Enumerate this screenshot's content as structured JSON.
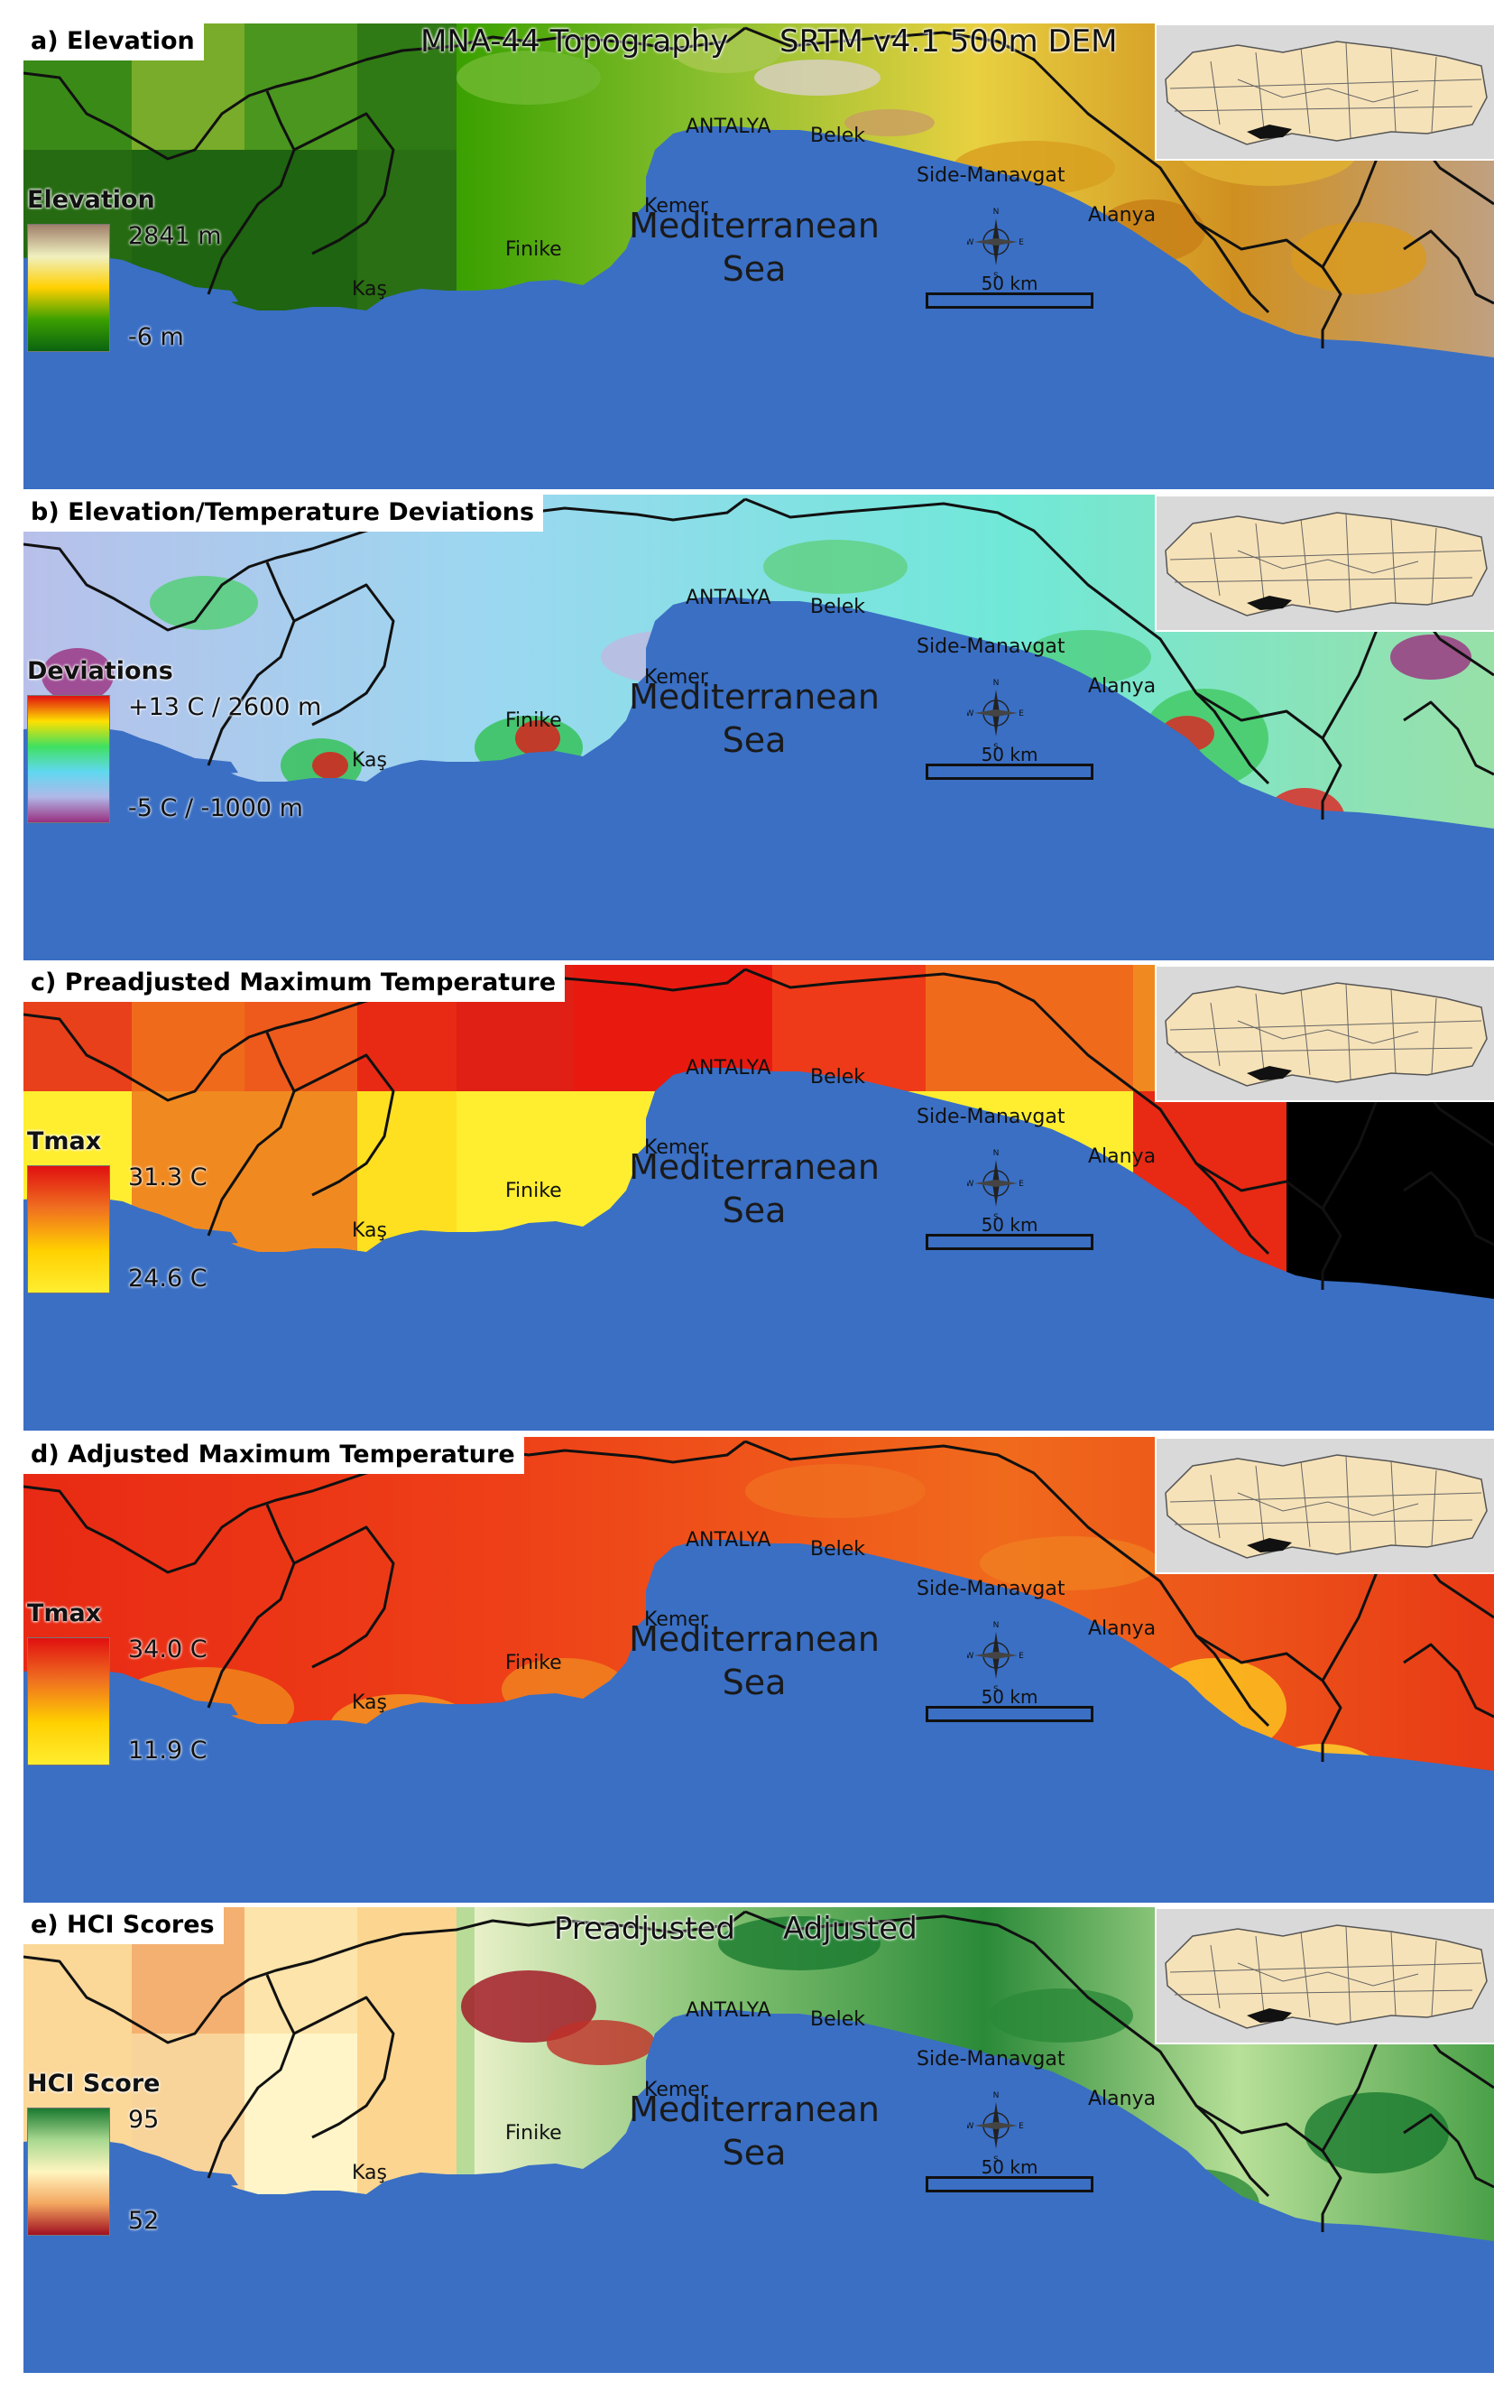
{
  "sea_label_line1": "Mediterranean",
  "sea_label_line2": "Sea",
  "cities": {
    "antalya": "ANTALYA",
    "belek": "Belek",
    "side": "Side-Manavgat",
    "alanya": "Alanya",
    "kemer": "Kemer",
    "finike": "Finike",
    "kas": "Kaş"
  },
  "scale_label": "50  km",
  "compass": {
    "n": "N",
    "s": "S",
    "e": "E",
    "w": "W"
  },
  "colors": {
    "sea": "#3a6fc4",
    "inset_land": "#f6e2b8",
    "inset_bg": "#d9d9d9",
    "border": "#111111"
  },
  "panels": [
    {
      "title": "a) Elevation",
      "header_left": "MNA-44 Topography",
      "header_right": "SRTM v4.1 500m DEM",
      "legend_title": "Elevation",
      "legend_max": "2841 m",
      "legend_min": "-6 m",
      "legend_colors": [
        "#a0806a",
        "#f0f0c0",
        "#ffd000",
        "#3ca000",
        "#0a6410"
      ]
    },
    {
      "title": "b) Elevation/Temperature Deviations",
      "header_left": "",
      "header_right": "",
      "legend_title": "Deviations",
      "legend_max": "+13 C / 2600 m",
      "legend_min": "-5 C / -1000 m",
      "legend_colors": [
        "#e01010",
        "#ffe000",
        "#40e060",
        "#60d8f0",
        "#b0b8e8",
        "#9a3080"
      ]
    },
    {
      "title": "c) Preadjusted Maximum Temperature",
      "header_left": "",
      "header_right": "",
      "legend_title": "Tmax",
      "legend_max": "31.3 C",
      "legend_min": "24.6 C",
      "legend_colors": [
        "#e01010",
        "#f07020",
        "#ffd000",
        "#ffee30"
      ]
    },
    {
      "title": "d) Adjusted Maximum Temperature",
      "header_left": "",
      "header_right": "",
      "legend_title": "Tmax",
      "legend_max": "34.0 C",
      "legend_min": "11.9 C",
      "legend_colors": [
        "#e01010",
        "#f07020",
        "#ffd000",
        "#ffee30"
      ]
    },
    {
      "title": "e) HCI Scores",
      "header_left": "Preadjusted",
      "header_right": "Adjusted",
      "legend_title": "HCI Score",
      "legend_max": "95",
      "legend_min": "52",
      "legend_colors": [
        "#1a7a30",
        "#a8d890",
        "#fff5c0",
        "#f4a860",
        "#a01020"
      ]
    }
  ]
}
